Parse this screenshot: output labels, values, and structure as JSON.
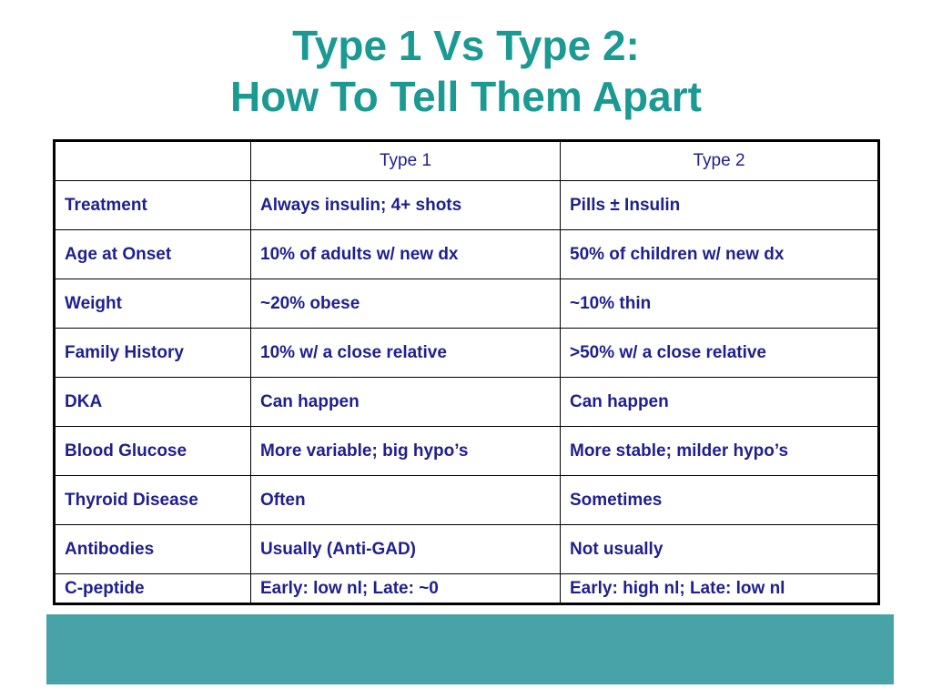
{
  "title": {
    "line1": "Type 1 Vs Type 2:",
    "line2": "How To Tell Them Apart"
  },
  "table": {
    "headers": [
      "",
      "Type 1",
      "Type 2"
    ],
    "rows": [
      [
        "Treatment",
        "Always insulin; 4+ shots",
        "Pills ± Insulin"
      ],
      [
        "Age at Onset",
        "10% of adults w/ new dx",
        "50% of children w/ new dx"
      ],
      [
        "Weight",
        "~20% obese",
        "~10% thin"
      ],
      [
        "Family History",
        "10% w/ a close relative",
        ">50% w/ a close relative"
      ],
      [
        "DKA",
        "Can happen",
        "Can happen"
      ],
      [
        "Blood Glucose",
        "More variable; big hypo’s",
        "More stable; milder hypo’s"
      ],
      [
        "Thyroid Disease",
        "Often",
        "Sometimes"
      ],
      [
        "Antibodies",
        "Usually (Anti-GAD)",
        "Not usually"
      ],
      [
        "C-peptide",
        "Early: low nl; Late: ~0",
        "Early: high nl; Late: low nl"
      ]
    ]
  },
  "colors": {
    "title": "#1a9a93",
    "table_text": "#1f1f8f",
    "table_border": "#000000",
    "footer_band": "#48a3a9",
    "background": "#ffffff"
  }
}
